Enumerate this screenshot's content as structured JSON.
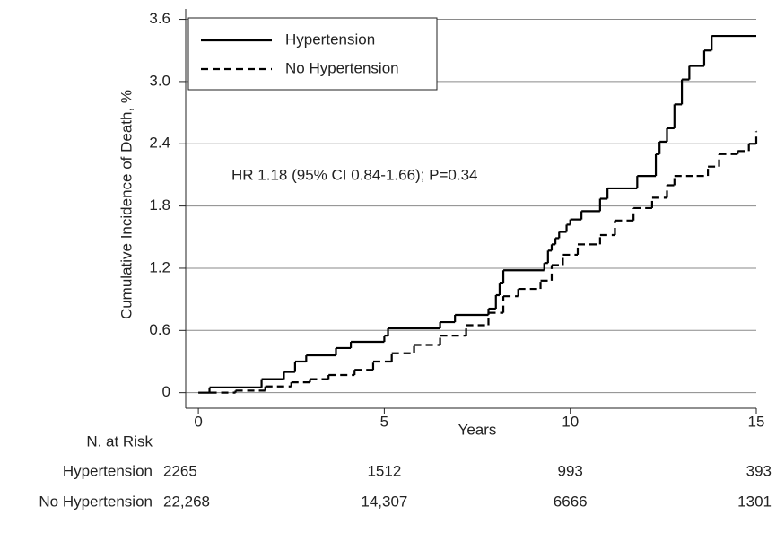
{
  "chart_data": {
    "type": "step",
    "y_label": "Cumulative Incidence of Death, %",
    "x_label": "Years",
    "annotation": "HR 1.18 (95% CI 0.84-1.66); P=0.34",
    "xlim": [
      -0.34,
      15
    ],
    "ylim": [
      -0.15,
      3.7
    ],
    "xticks": [
      0,
      5,
      10,
      15
    ],
    "yticks": [
      {
        "value": 0,
        "label": "0"
      },
      {
        "value": 0.6,
        "label": "0.6"
      },
      {
        "value": 1.2,
        "label": "1.2"
      },
      {
        "value": 1.8,
        "label": "1.8"
      },
      {
        "value": 2.4,
        "label": "2.4"
      },
      {
        "value": 3.0,
        "label": "3.0"
      },
      {
        "value": 3.6,
        "label": "3.6"
      }
    ],
    "grid": true,
    "legend": "upper left",
    "series": [
      {
        "name": "Hypertension",
        "color": "#000000",
        "dash": "solid",
        "x": [
          0,
          0.3,
          1.7,
          2.3,
          2.6,
          2.9,
          3.7,
          4.1,
          5.0,
          5.1,
          6.5,
          6.9,
          7.8,
          8.0,
          8.1,
          8.2,
          9.3,
          9.4,
          9.5,
          9.6,
          9.7,
          9.9,
          10.0,
          10.3,
          10.8,
          11.0,
          11.8,
          12.3,
          12.4,
          12.6,
          12.8,
          13.0,
          13.2,
          13.6,
          13.8,
          15.0
        ],
        "values": [
          0,
          0.05,
          0.13,
          0.2,
          0.3,
          0.36,
          0.43,
          0.49,
          0.55,
          0.62,
          0.68,
          0.75,
          0.81,
          0.94,
          1.06,
          1.18,
          1.25,
          1.37,
          1.43,
          1.49,
          1.55,
          1.62,
          1.67,
          1.75,
          1.87,
          1.97,
          2.09,
          2.3,
          2.42,
          2.55,
          2.78,
          3.02,
          3.15,
          3.3,
          3.44,
          3.44
        ]
      },
      {
        "name": "No Hypertension",
        "color": "#000000",
        "dash": "dashed",
        "x": [
          0.3,
          1.0,
          1.8,
          2.5,
          3.0,
          3.5,
          4.2,
          4.7,
          5.2,
          5.8,
          6.5,
          7.2,
          7.8,
          8.2,
          8.6,
          9.2,
          9.5,
          9.8,
          10.2,
          10.8,
          11.2,
          11.7,
          12.2,
          12.6,
          12.8,
          13.4,
          13.7,
          14.0,
          14.5,
          14.8,
          15.0
        ],
        "values": [
          0,
          0.02,
          0.06,
          0.1,
          0.13,
          0.17,
          0.22,
          0.3,
          0.38,
          0.46,
          0.55,
          0.65,
          0.77,
          0.93,
          1.0,
          1.08,
          1.23,
          1.33,
          1.43,
          1.52,
          1.66,
          1.78,
          1.88,
          2.0,
          2.09,
          2.09,
          2.18,
          2.3,
          2.33,
          2.4,
          2.52
        ]
      }
    ],
    "risk_table": {
      "title": "N. at Risk",
      "rows": [
        {
          "label": "Hypertension",
          "values": [
            "2265",
            "1512",
            "993",
            "393"
          ]
        },
        {
          "label": "No Hypertension",
          "values": [
            "22,268",
            "14,307",
            "6666",
            "1301"
          ]
        }
      ]
    }
  }
}
